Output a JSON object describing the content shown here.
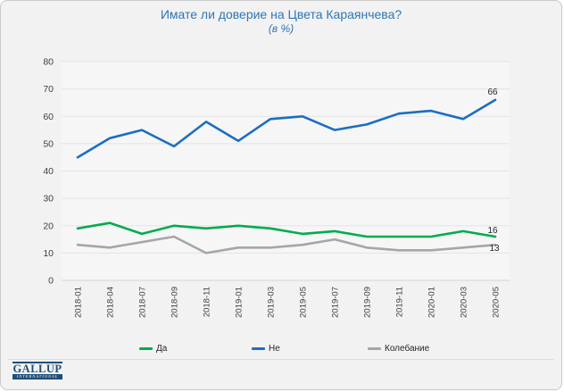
{
  "title": {
    "text": "Имате ли доверие на Цвета Караянчева?",
    "subtitle": "(в %)"
  },
  "chart_data": {
    "type": "line",
    "categories": [
      "2018-01",
      "2018-04",
      "2018-07",
      "2018-09",
      "2018-11",
      "2019-01",
      "2019-03",
      "2019-05",
      "2019-07",
      "2019-09",
      "2019-11",
      "2020-01",
      "2020-03",
      "2020-05"
    ],
    "series": [
      {
        "name": "Да",
        "color": "#00AB4E",
        "values": [
          19,
          21,
          17,
          20,
          19,
          20,
          19,
          17,
          18,
          16,
          16,
          16,
          18,
          16
        ],
        "end_label": "16"
      },
      {
        "name": "Не",
        "color": "#1B6EC2",
        "values": [
          45,
          52,
          55,
          49,
          58,
          51,
          59,
          60,
          55,
          57,
          61,
          62,
          59,
          66
        ],
        "end_label": "66"
      },
      {
        "name": "Колебание",
        "color": "#A6A6A6",
        "values": [
          13,
          12,
          14,
          16,
          10,
          12,
          12,
          13,
          15,
          12,
          11,
          11,
          12,
          13
        ],
        "end_label": "13"
      }
    ],
    "title": "Имате ли доверие на Цвета Караянчева?",
    "subtitle": "(в %)",
    "xlabel": "",
    "ylabel": "",
    "ylim": [
      0,
      80
    ],
    "ytick_step": 10,
    "grid": true,
    "legend_position": "bottom"
  },
  "legend_note": "legend items bound from chart_data.series names",
  "logo": {
    "name": "GALLUP",
    "subname": "INTERNATIONAL"
  },
  "colors": {
    "title_blue": "#2E75B6",
    "axis_text": "#404040",
    "gridline": "#E3E3E3",
    "axis_line": "#D4D4D4",
    "plot_bg": "#F6F6F6",
    "slide_bg": "#F2F2F2",
    "label_text": "#262626",
    "logo_navy": "#1F4E79"
  }
}
